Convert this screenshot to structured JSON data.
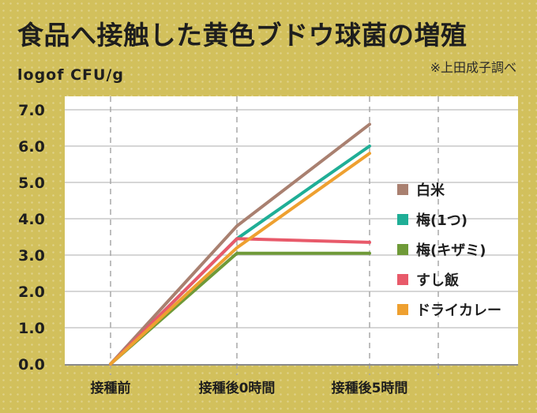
{
  "chart_data": {
    "type": "line",
    "title": "食品へ接触した黄色ブドウ球菌の増殖",
    "ylabel": "logof CFU/g",
    "source": "※上田成子調べ",
    "categories": [
      "接種前",
      "接種後0時間",
      "接種後5時間"
    ],
    "ylim": [
      0,
      7
    ],
    "yticks": [
      "0.0",
      "1.0",
      "2.0",
      "3.0",
      "4.0",
      "5.0",
      "6.0",
      "7.0"
    ],
    "grid": true,
    "legend": "right",
    "series": [
      {
        "name": "白米",
        "color": "#a98070",
        "values": [
          0,
          3.8,
          6.6
        ]
      },
      {
        "name": "梅(1つ)",
        "color": "#1fae96",
        "values": [
          0,
          3.45,
          6.0
        ]
      },
      {
        "name": "梅(キザミ)",
        "color": "#6f9a38",
        "values": [
          0,
          3.05,
          3.05
        ]
      },
      {
        "name": "すし飯",
        "color": "#e85a6a",
        "values": [
          0,
          3.45,
          3.35
        ]
      },
      {
        "name": "ドライカレー",
        "color": "#eea030",
        "values": [
          0,
          3.2,
          5.8
        ]
      }
    ]
  }
}
